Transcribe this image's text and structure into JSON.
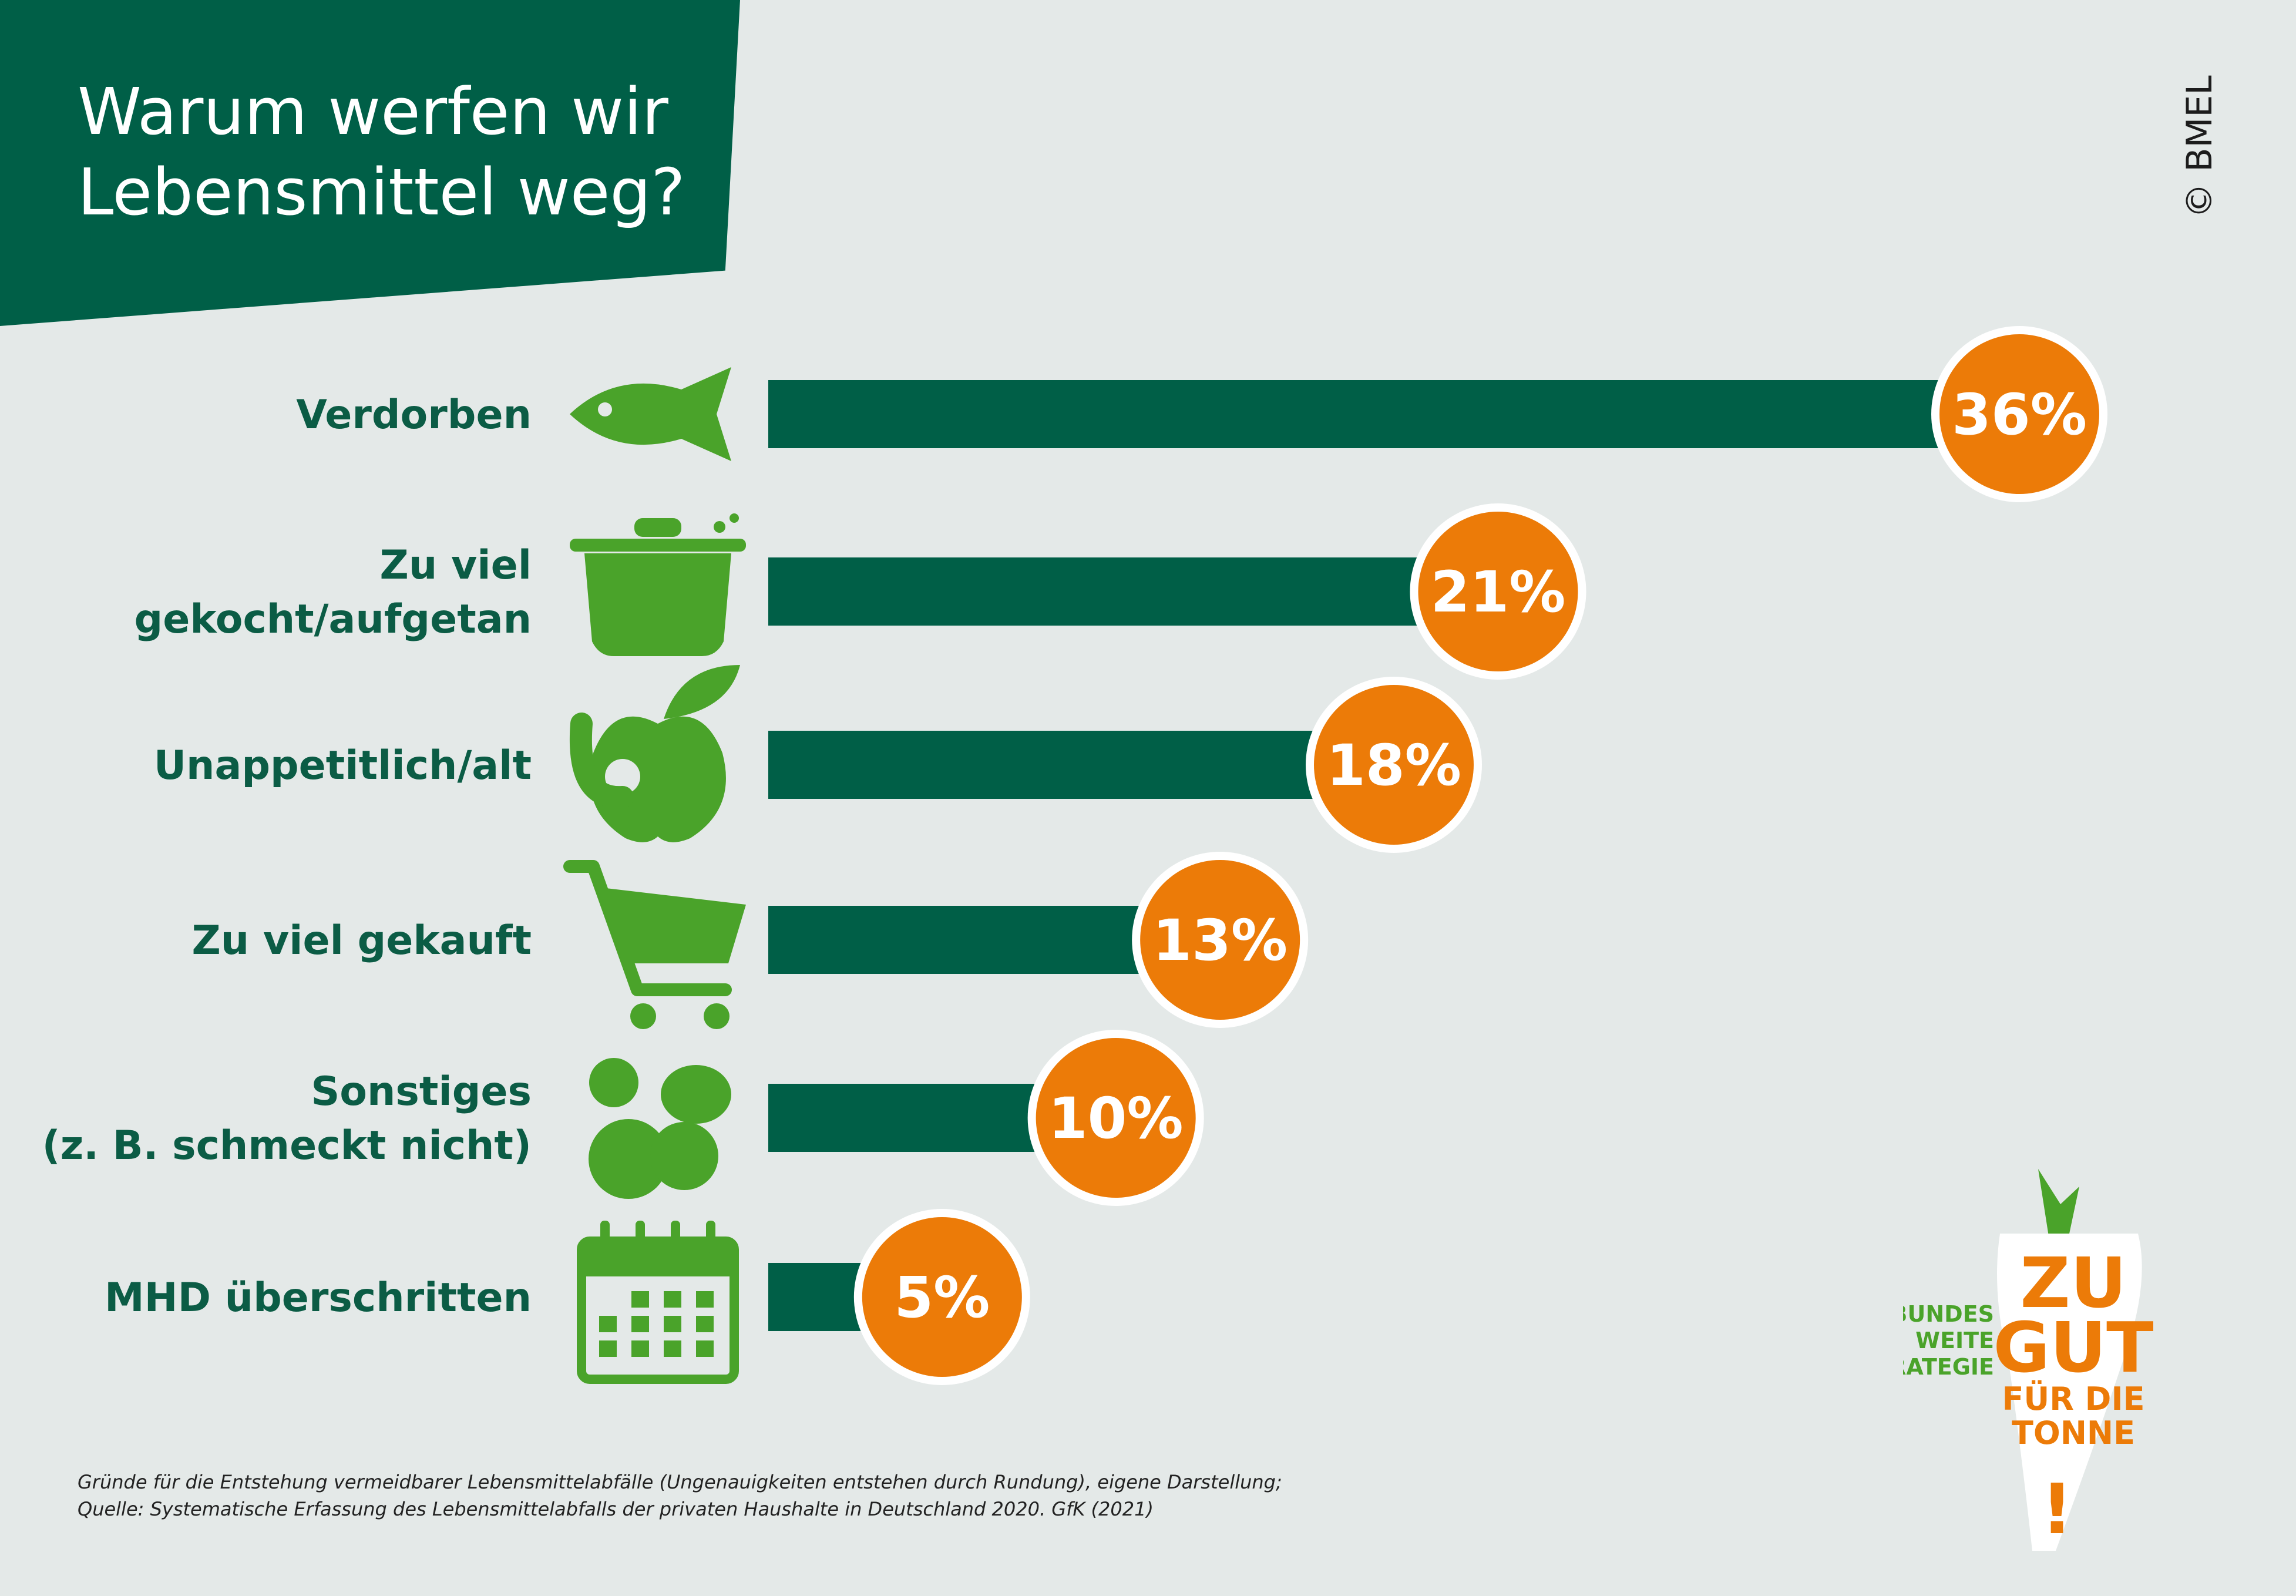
{
  "header": {
    "title_line1": "Warum werfen wir",
    "title_line2": "Lebensmittel weg?"
  },
  "copyright": "© BMEL",
  "colors": {
    "bar": "#005f47",
    "badge": "#ec7b08",
    "icon": "#4aa32a",
    "text": "#0b5c45",
    "background": "#e4e9e8"
  },
  "chart_data": {
    "type": "bar",
    "orientation": "horizontal",
    "title": "Warum werfen wir Lebensmittel weg?",
    "categories": [
      {
        "lines": [
          "Verdorben"
        ],
        "icon": "fish-icon"
      },
      {
        "lines": [
          "Zu viel",
          "gekocht/aufgetan"
        ],
        "icon": "cooking-pot-icon"
      },
      {
        "lines": [
          "Unappetitlich/alt"
        ],
        "icon": "apple-worm-icon"
      },
      {
        "lines": [
          "Zu viel gekauft"
        ],
        "icon": "shopping-cart-icon"
      },
      {
        "lines": [
          "Sonstiges",
          "(z. B. schmeckt nicht)"
        ],
        "icon": "food-blobs-icon"
      },
      {
        "lines": [
          "MHD überschritten"
        ],
        "icon": "calendar-icon"
      }
    ],
    "values": [
      36,
      21,
      18,
      13,
      10,
      5
    ],
    "value_labels": [
      "36%",
      "21%",
      "18%",
      "13%",
      "10%",
      "5%"
    ],
    "unit": "%",
    "xlim": [
      0,
      36
    ],
    "grid": false,
    "legend": "none"
  },
  "footnote": {
    "line1": "Gründe für die Entstehung vermeidbarer Lebensmittelabfälle (Ungenauigkeiten entstehen durch Rundung), eigene Darstellung;",
    "line2": "Quelle: Systematische Erfassung des Lebensmittelabfalls der privaten Haushalte in Deutschland 2020. GfK (2021)"
  },
  "logo": {
    "left_lines": [
      "BUNDES",
      "WEITE",
      "STRATEGIE"
    ],
    "big_lines": [
      "ZU",
      "GUT"
    ],
    "small_lines": [
      "FÜR DIE",
      "TONNE"
    ],
    "exclamation": "!"
  }
}
